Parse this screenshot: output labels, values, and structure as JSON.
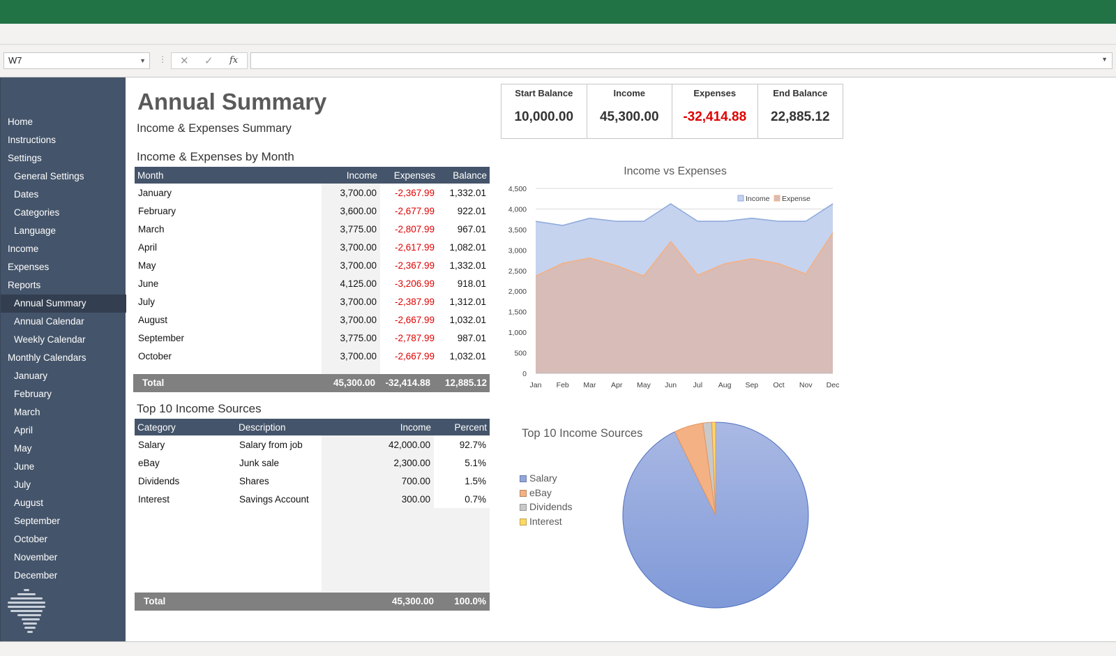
{
  "formula_bar": {
    "name_box": "W7",
    "formula": ""
  },
  "sidebar": {
    "items": [
      {
        "label": "Home",
        "sub": false
      },
      {
        "label": "Instructions",
        "sub": false
      },
      {
        "label": "Settings",
        "sub": false
      },
      {
        "label": "General Settings",
        "sub": true
      },
      {
        "label": "Dates",
        "sub": true
      },
      {
        "label": "Categories",
        "sub": true
      },
      {
        "label": "Language",
        "sub": true
      },
      {
        "label": "Income",
        "sub": false
      },
      {
        "label": "Expenses",
        "sub": false
      },
      {
        "label": "Reports",
        "sub": false
      },
      {
        "label": "Annual Summary",
        "sub": true,
        "active": true
      },
      {
        "label": "Annual Calendar",
        "sub": true
      },
      {
        "label": "Weekly Calendar",
        "sub": true
      },
      {
        "label": "Monthly Calendars",
        "sub": false
      },
      {
        "label": "January",
        "sub": true
      },
      {
        "label": "February",
        "sub": true
      },
      {
        "label": "March",
        "sub": true
      },
      {
        "label": "April",
        "sub": true
      },
      {
        "label": "May",
        "sub": true
      },
      {
        "label": "June",
        "sub": true
      },
      {
        "label": "July",
        "sub": true
      },
      {
        "label": "August",
        "sub": true
      },
      {
        "label": "September",
        "sub": true
      },
      {
        "label": "October",
        "sub": true
      },
      {
        "label": "November",
        "sub": true
      },
      {
        "label": "December",
        "sub": true
      }
    ]
  },
  "page": {
    "title": "Annual Summary",
    "subtitle": "Income & Expenses Summary",
    "monthly_section_title": "Income & Expenses by Month",
    "sources_section_title": "Top 10 Income Sources"
  },
  "kpis": [
    {
      "label": "Start Balance",
      "value": "10,000.00",
      "negative": false
    },
    {
      "label": "Income",
      "value": "45,300.00",
      "negative": false
    },
    {
      "label": "Expenses",
      "value": "-32,414.88",
      "negative": true
    },
    {
      "label": "End Balance",
      "value": "22,885.12",
      "negative": false
    }
  ],
  "monthly_table": {
    "headers": [
      "Month",
      "Income",
      "Expenses",
      "Balance"
    ],
    "rows": [
      [
        "January",
        "3,700.00",
        "-2,367.99",
        "1,332.01"
      ],
      [
        "February",
        "3,600.00",
        "-2,677.99",
        "922.01"
      ],
      [
        "March",
        "3,775.00",
        "-2,807.99",
        "967.01"
      ],
      [
        "April",
        "3,700.00",
        "-2,617.99",
        "1,082.01"
      ],
      [
        "May",
        "3,700.00",
        "-2,367.99",
        "1,332.01"
      ],
      [
        "June",
        "4,125.00",
        "-3,206.99",
        "918.01"
      ],
      [
        "July",
        "3,700.00",
        "-2,387.99",
        "1,312.01"
      ],
      [
        "August",
        "3,700.00",
        "-2,667.99",
        "1,032.01"
      ],
      [
        "September",
        "3,775.00",
        "-2,787.99",
        "987.01"
      ],
      [
        "October",
        "3,700.00",
        "-2,667.99",
        "1,032.01"
      ]
    ],
    "total": {
      "label": "Total",
      "income": "45,300.00",
      "expenses": "-32,414.88",
      "balance": "12,885.12"
    }
  },
  "sources_table": {
    "headers": [
      "Category",
      "Description",
      "Income",
      "Percent"
    ],
    "rows": [
      [
        "Salary",
        "Salary from job",
        "42,000.00",
        "92.7%"
      ],
      [
        "eBay",
        "Junk sale",
        "2,300.00",
        "5.1%"
      ],
      [
        "Dividends",
        "Shares",
        "700.00",
        "1.5%"
      ],
      [
        "Interest",
        "Savings Account",
        "300.00",
        "0.7%"
      ]
    ],
    "total": {
      "label": "Total",
      "income": "45,300.00",
      "percent": "100.0%"
    }
  },
  "chart_data": [
    {
      "type": "area",
      "title": "Income vs Expenses",
      "categories": [
        "Jan",
        "Feb",
        "Mar",
        "Apr",
        "May",
        "Jun",
        "Jul",
        "Aug",
        "Sep",
        "Oct",
        "Nov",
        "Dec"
      ],
      "series": [
        {
          "name": "Income",
          "values": [
            3700,
            3600,
            3775,
            3700,
            3700,
            4125,
            3700,
            3700,
            3775,
            3700,
            3700,
            4125
          ],
          "color": "#8faadc",
          "fill": "#c5d3ef"
        },
        {
          "name": "Expense",
          "values": [
            2368,
            2678,
            2808,
            2618,
            2368,
            3207,
            2388,
            2668,
            2788,
            2668,
            2420,
            3420
          ],
          "color": "#f4b183",
          "fill": "#d7bcb8"
        }
      ],
      "y_ticks": [
        "0",
        "500",
        "1,000",
        "1,500",
        "2,000",
        "2,500",
        "3,000",
        "3,500",
        "4,000",
        "4,500"
      ],
      "ylim": [
        0,
        4500
      ],
      "grid": true,
      "legend": "top-right"
    },
    {
      "type": "pie",
      "title": "Top 10 Income Sources",
      "categories": [
        "Salary",
        "eBay",
        "Dividends",
        "Interest"
      ],
      "values": [
        42000,
        2300,
        700,
        300
      ],
      "colors": [
        "#91a6dd",
        "#f4b183",
        "#c9c9c9",
        "#ffd966"
      ],
      "legend": "left"
    }
  ]
}
